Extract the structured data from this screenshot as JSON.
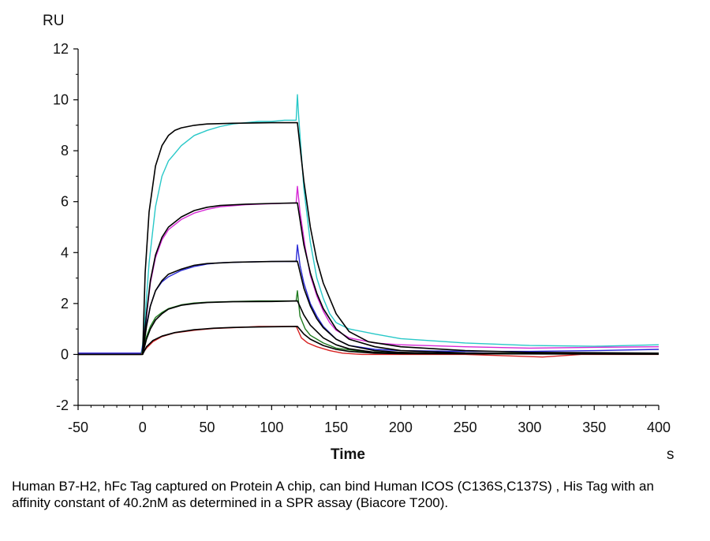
{
  "chart_data": {
    "type": "line",
    "title": "",
    "ylabel": "RU",
    "xlabel": "Time",
    "xunit": "s",
    "xlim": [
      -50,
      400
    ],
    "ylim": [
      -2,
      12
    ],
    "x_ticks": [
      -50,
      0,
      50,
      100,
      150,
      200,
      250,
      300,
      350,
      400
    ],
    "y_ticks": [
      -2,
      0,
      2,
      4,
      6,
      8,
      10,
      12
    ],
    "grid": false,
    "legend": "none",
    "association_start": 0,
    "dissociation_start": 120,
    "series": [
      {
        "color": "#28c8c8",
        "role": "measured",
        "points": [
          [
            -50,
            0.05
          ],
          [
            -25,
            0.05
          ],
          [
            -1,
            0.05
          ],
          [
            0,
            0.4
          ],
          [
            2,
            1.5
          ],
          [
            5,
            3.6
          ],
          [
            10,
            5.8
          ],
          [
            15,
            7.0
          ],
          [
            20,
            7.6
          ],
          [
            25,
            7.9
          ],
          [
            30,
            8.2
          ],
          [
            40,
            8.6
          ],
          [
            50,
            8.8
          ],
          [
            60,
            8.95
          ],
          [
            70,
            9.05
          ],
          [
            80,
            9.1
          ],
          [
            90,
            9.15
          ],
          [
            100,
            9.15
          ],
          [
            110,
            9.2
          ],
          [
            119,
            9.2
          ],
          [
            120,
            10.2
          ],
          [
            121,
            9.3
          ],
          [
            125,
            6.5
          ],
          [
            130,
            4.4
          ],
          [
            135,
            3.0
          ],
          [
            140,
            2.2
          ],
          [
            145,
            1.6
          ],
          [
            150,
            1.25
          ],
          [
            160,
            1.0
          ],
          [
            180,
            0.8
          ],
          [
            200,
            0.62
          ],
          [
            250,
            0.45
          ],
          [
            300,
            0.35
          ],
          [
            350,
            0.32
          ],
          [
            400,
            0.38
          ]
        ]
      },
      {
        "color": "#d629d6",
        "role": "measured",
        "points": [
          [
            -50,
            0.05
          ],
          [
            -1,
            0.05
          ],
          [
            0,
            0.3
          ],
          [
            3,
            1.5
          ],
          [
            6,
            2.8
          ],
          [
            10,
            3.8
          ],
          [
            15,
            4.5
          ],
          [
            20,
            4.9
          ],
          [
            30,
            5.3
          ],
          [
            40,
            5.55
          ],
          [
            50,
            5.7
          ],
          [
            60,
            5.8
          ],
          [
            80,
            5.88
          ],
          [
            100,
            5.92
          ],
          [
            119,
            5.95
          ],
          [
            120,
            6.6
          ],
          [
            122,
            5.6
          ],
          [
            126,
            4.2
          ],
          [
            130,
            3.1
          ],
          [
            135,
            2.3
          ],
          [
            140,
            1.7
          ],
          [
            145,
            1.25
          ],
          [
            150,
            0.95
          ],
          [
            160,
            0.65
          ],
          [
            180,
            0.45
          ],
          [
            200,
            0.38
          ],
          [
            250,
            0.3
          ],
          [
            300,
            0.25
          ],
          [
            350,
            0.28
          ],
          [
            400,
            0.3
          ]
        ]
      },
      {
        "color": "#2a2ad6",
        "role": "measured",
        "points": [
          [
            -50,
            0.05
          ],
          [
            -1,
            0.05
          ],
          [
            0,
            0.3
          ],
          [
            3,
            1.2
          ],
          [
            6,
            1.9
          ],
          [
            10,
            2.5
          ],
          [
            15,
            2.85
          ],
          [
            20,
            3.05
          ],
          [
            30,
            3.3
          ],
          [
            40,
            3.45
          ],
          [
            50,
            3.55
          ],
          [
            60,
            3.6
          ],
          [
            80,
            3.63
          ],
          [
            100,
            3.65
          ],
          [
            119,
            3.65
          ],
          [
            120,
            4.3
          ],
          [
            122,
            3.5
          ],
          [
            125,
            2.8
          ],
          [
            130,
            2.0
          ],
          [
            135,
            1.5
          ],
          [
            140,
            1.1
          ],
          [
            145,
            0.85
          ],
          [
            150,
            0.6
          ],
          [
            160,
            0.35
          ],
          [
            180,
            0.2
          ],
          [
            200,
            0.15
          ],
          [
            250,
            0.12
          ],
          [
            300,
            0.12
          ],
          [
            350,
            0.15
          ],
          [
            400,
            0.2
          ]
        ]
      },
      {
        "color": "#1f7a1f",
        "role": "measured",
        "points": [
          [
            -50,
            0.0
          ],
          [
            -1,
            0.0
          ],
          [
            0,
            0.2
          ],
          [
            3,
            0.7
          ],
          [
            6,
            1.1
          ],
          [
            10,
            1.45
          ],
          [
            15,
            1.65
          ],
          [
            20,
            1.8
          ],
          [
            30,
            1.95
          ],
          [
            40,
            2.02
          ],
          [
            50,
            2.05
          ],
          [
            70,
            2.08
          ],
          [
            90,
            2.1
          ],
          [
            110,
            2.1
          ],
          [
            119,
            2.1
          ],
          [
            120,
            2.5
          ],
          [
            122,
            1.5
          ],
          [
            126,
            1.0
          ],
          [
            130,
            0.75
          ],
          [
            140,
            0.45
          ],
          [
            150,
            0.25
          ],
          [
            170,
            0.12
          ],
          [
            200,
            0.05
          ],
          [
            250,
            0.05
          ],
          [
            300,
            0.05
          ],
          [
            400,
            0.05
          ]
        ]
      },
      {
        "color": "#d62020",
        "role": "measured",
        "points": [
          [
            -50,
            0.0
          ],
          [
            -1,
            0.0
          ],
          [
            0,
            0.05
          ],
          [
            3,
            0.25
          ],
          [
            8,
            0.5
          ],
          [
            15,
            0.7
          ],
          [
            25,
            0.85
          ],
          [
            40,
            0.95
          ],
          [
            55,
            1.02
          ],
          [
            70,
            1.05
          ],
          [
            90,
            1.1
          ],
          [
            110,
            1.1
          ],
          [
            119,
            1.1
          ],
          [
            120,
            1.0
          ],
          [
            123,
            0.65
          ],
          [
            128,
            0.45
          ],
          [
            135,
            0.3
          ],
          [
            145,
            0.15
          ],
          [
            155,
            0.05
          ],
          [
            170,
            0.0
          ],
          [
            200,
            0.0
          ],
          [
            250,
            0.0
          ],
          [
            310,
            -0.1
          ],
          [
            340,
            0.0
          ],
          [
            400,
            0.0
          ]
        ]
      },
      {
        "color": "#000000",
        "role": "fit",
        "points": [
          [
            -50,
            0.0
          ],
          [
            0,
            0.0
          ],
          [
            2,
            3.2
          ],
          [
            5,
            5.6
          ],
          [
            10,
            7.4
          ],
          [
            15,
            8.2
          ],
          [
            20,
            8.6
          ],
          [
            25,
            8.8
          ],
          [
            30,
            8.9
          ],
          [
            40,
            9.0
          ],
          [
            50,
            9.05
          ],
          [
            70,
            9.08
          ],
          [
            100,
            9.1
          ],
          [
            120,
            9.1
          ],
          [
            125,
            6.8
          ],
          [
            130,
            5.0
          ],
          [
            135,
            3.7
          ],
          [
            140,
            2.8
          ],
          [
            150,
            1.6
          ],
          [
            160,
            0.9
          ],
          [
            175,
            0.5
          ],
          [
            200,
            0.3
          ],
          [
            250,
            0.15
          ],
          [
            300,
            0.08
          ],
          [
            400,
            0.05
          ]
        ]
      },
      {
        "color": "#000000",
        "role": "fit",
        "points": [
          [
            0,
            0.0
          ],
          [
            3,
            1.6
          ],
          [
            6,
            2.9
          ],
          [
            10,
            3.9
          ],
          [
            15,
            4.6
          ],
          [
            20,
            5.0
          ],
          [
            30,
            5.4
          ],
          [
            40,
            5.65
          ],
          [
            50,
            5.78
          ],
          [
            60,
            5.85
          ],
          [
            80,
            5.9
          ],
          [
            100,
            5.93
          ],
          [
            120,
            5.95
          ],
          [
            125,
            4.3
          ],
          [
            130,
            3.2
          ],
          [
            135,
            2.4
          ],
          [
            140,
            1.8
          ],
          [
            150,
            1.0
          ],
          [
            160,
            0.6
          ],
          [
            180,
            0.3
          ],
          [
            200,
            0.15
          ],
          [
            250,
            0.06
          ],
          [
            300,
            0.03
          ],
          [
            400,
            0.02
          ]
        ]
      },
      {
        "color": "#000000",
        "role": "fit",
        "points": [
          [
            0,
            0.0
          ],
          [
            3,
            1.1
          ],
          [
            6,
            1.9
          ],
          [
            10,
            2.5
          ],
          [
            15,
            2.9
          ],
          [
            20,
            3.15
          ],
          [
            30,
            3.35
          ],
          [
            40,
            3.5
          ],
          [
            50,
            3.57
          ],
          [
            70,
            3.62
          ],
          [
            100,
            3.65
          ],
          [
            120,
            3.66
          ],
          [
            125,
            2.6
          ],
          [
            130,
            1.9
          ],
          [
            135,
            1.4
          ],
          [
            140,
            1.05
          ],
          [
            150,
            0.6
          ],
          [
            160,
            0.35
          ],
          [
            180,
            0.15
          ],
          [
            200,
            0.08
          ],
          [
            250,
            0.03
          ],
          [
            400,
            0.02
          ]
        ]
      },
      {
        "color": "#000000",
        "role": "fit",
        "points": [
          [
            0,
            0.0
          ],
          [
            3,
            0.6
          ],
          [
            6,
            1.0
          ],
          [
            10,
            1.35
          ],
          [
            15,
            1.6
          ],
          [
            20,
            1.78
          ],
          [
            30,
            1.93
          ],
          [
            40,
            2.0
          ],
          [
            50,
            2.04
          ],
          [
            70,
            2.07
          ],
          [
            100,
            2.08
          ],
          [
            120,
            2.1
          ],
          [
            125,
            1.55
          ],
          [
            130,
            1.15
          ],
          [
            140,
            0.65
          ],
          [
            150,
            0.38
          ],
          [
            160,
            0.22
          ],
          [
            180,
            0.08
          ],
          [
            200,
            0.04
          ],
          [
            400,
            0.02
          ]
        ]
      },
      {
        "color": "#000000",
        "role": "fit",
        "points": [
          [
            0,
            0.0
          ],
          [
            3,
            0.3
          ],
          [
            8,
            0.55
          ],
          [
            15,
            0.72
          ],
          [
            25,
            0.86
          ],
          [
            40,
            0.97
          ],
          [
            55,
            1.03
          ],
          [
            70,
            1.06
          ],
          [
            90,
            1.08
          ],
          [
            120,
            1.1
          ],
          [
            125,
            0.8
          ],
          [
            130,
            0.6
          ],
          [
            140,
            0.35
          ],
          [
            150,
            0.2
          ],
          [
            160,
            0.12
          ],
          [
            180,
            0.05
          ],
          [
            200,
            0.03
          ],
          [
            400,
            0.01
          ]
        ]
      }
    ]
  },
  "caption": "Human B7-H2, hFc Tag captured on Protein A chip, can bind Human ICOS (C136S,C137S) , His Tag with an affinity constant of 40.2nM as determined in a SPR assay (Biacore T200)."
}
